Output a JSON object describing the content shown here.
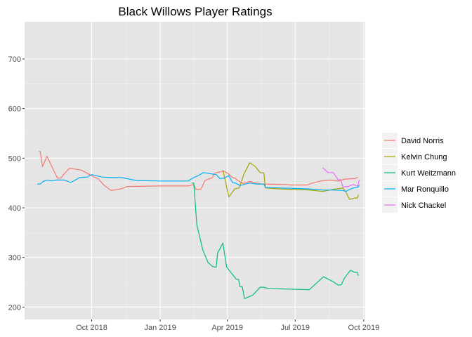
{
  "chart_data": {
    "type": "line",
    "title": "Black Willows Player Ratings",
    "xlabel": "",
    "ylabel": "",
    "x_axis": {
      "type": "date",
      "range": [
        "2018-07-03",
        "2019-10-03"
      ],
      "ticks": [
        {
          "date": "2018-10-01",
          "label": "Oct 2018"
        },
        {
          "date": "2019-01-01",
          "label": "Jan 2019"
        },
        {
          "date": "2019-04-01",
          "label": "Apr 2019"
        },
        {
          "date": "2019-07-01",
          "label": "Jul 2019"
        },
        {
          "date": "2019-10-01",
          "label": "Oct 2019"
        }
      ]
    },
    "y_axis": {
      "range": [
        175,
        775
      ],
      "ticks": [
        200,
        300,
        400,
        500,
        600,
        700
      ]
    },
    "grid": true,
    "legend_position": "right",
    "background": "#e5e5e5",
    "series": [
      {
        "name": "David Norris",
        "color": "#F8766D",
        "points": [
          [
            "2018-07-22",
            514
          ],
          [
            "2018-07-24",
            513
          ],
          [
            "2018-07-27",
            483
          ],
          [
            "2018-08-02",
            504
          ],
          [
            "2018-08-16",
            460
          ],
          [
            "2018-08-21",
            460
          ],
          [
            "2018-08-25",
            468
          ],
          [
            "2018-09-01",
            480
          ],
          [
            "2018-09-17",
            476
          ],
          [
            "2018-10-01",
            465
          ],
          [
            "2018-10-10",
            458
          ],
          [
            "2018-10-18",
            445
          ],
          [
            "2018-10-27",
            435
          ],
          [
            "2018-11-09",
            438
          ],
          [
            "2018-11-18",
            443
          ],
          [
            "2019-01-01",
            444
          ],
          [
            "2019-02-07",
            444
          ],
          [
            "2019-02-15",
            447
          ],
          [
            "2019-02-18",
            437
          ],
          [
            "2019-02-25",
            438
          ],
          [
            "2019-03-02",
            455
          ],
          [
            "2019-03-12",
            461
          ],
          [
            "2019-03-15",
            470
          ],
          [
            "2019-03-27",
            474
          ],
          [
            "2019-04-01",
            470
          ],
          [
            "2019-04-08",
            461
          ],
          [
            "2019-04-11",
            460
          ],
          [
            "2019-04-15",
            455
          ],
          [
            "2019-04-22",
            449
          ],
          [
            "2019-05-01",
            453
          ],
          [
            "2019-05-10",
            450
          ],
          [
            "2019-05-17",
            448
          ],
          [
            "2019-06-20",
            447
          ],
          [
            "2019-06-23",
            446
          ],
          [
            "2019-07-17",
            446
          ],
          [
            "2019-07-24",
            450
          ],
          [
            "2019-08-08",
            455
          ],
          [
            "2019-08-17",
            456
          ],
          [
            "2019-08-28",
            454
          ],
          [
            "2019-09-06",
            458
          ],
          [
            "2019-09-20",
            459
          ],
          [
            "2019-09-23",
            462
          ]
        ]
      },
      {
        "name": "Kelvin Chung",
        "color": "#A3A500",
        "points": [
          [
            "2019-03-26",
            476
          ],
          [
            "2019-04-03",
            422
          ],
          [
            "2019-04-11",
            438
          ],
          [
            "2019-04-17",
            440
          ],
          [
            "2019-04-23",
            467
          ],
          [
            "2019-05-01",
            491
          ],
          [
            "2019-05-08",
            484
          ],
          [
            "2019-05-15",
            471
          ],
          [
            "2019-05-20",
            470
          ],
          [
            "2019-05-22",
            440
          ],
          [
            "2019-06-10",
            438
          ],
          [
            "2019-07-01",
            437
          ],
          [
            "2019-07-20",
            436
          ],
          [
            "2019-08-07",
            433
          ],
          [
            "2019-08-20",
            437
          ],
          [
            "2019-09-03",
            440
          ],
          [
            "2019-09-07",
            432
          ],
          [
            "2019-09-12",
            417
          ],
          [
            "2019-09-20",
            420
          ],
          [
            "2019-09-22",
            419
          ],
          [
            "2019-09-24",
            426
          ]
        ]
      },
      {
        "name": "Kurt Weitzmann",
        "color": "#00BF7D",
        "points": [
          [
            "2019-02-12",
            450
          ],
          [
            "2019-02-15",
            450
          ],
          [
            "2019-02-19",
            366
          ],
          [
            "2019-02-27",
            316
          ],
          [
            "2019-03-06",
            290
          ],
          [
            "2019-03-12",
            282
          ],
          [
            "2019-03-17",
            280
          ],
          [
            "2019-03-19",
            309
          ],
          [
            "2019-03-26",
            329
          ],
          [
            "2019-03-31",
            281
          ],
          [
            "2019-04-13",
            256
          ],
          [
            "2019-04-16",
            256
          ],
          [
            "2019-04-18",
            241
          ],
          [
            "2019-04-21",
            241
          ],
          [
            "2019-04-24",
            217
          ],
          [
            "2019-05-05",
            224
          ],
          [
            "2019-05-15",
            240
          ],
          [
            "2019-05-20",
            240
          ],
          [
            "2019-05-24",
            238
          ],
          [
            "2019-06-06",
            237
          ],
          [
            "2019-06-24",
            236
          ],
          [
            "2019-07-20",
            235
          ],
          [
            "2019-08-08",
            261
          ],
          [
            "2019-08-21",
            251
          ],
          [
            "2019-08-28",
            244
          ],
          [
            "2019-09-01",
            245
          ],
          [
            "2019-09-05",
            258
          ],
          [
            "2019-09-13",
            274
          ],
          [
            "2019-09-19",
            270
          ],
          [
            "2019-09-22",
            270
          ],
          [
            "2019-09-24",
            263
          ]
        ]
      },
      {
        "name": "Mar Ronquillo",
        "color": "#00B0F6",
        "points": [
          [
            "2018-07-20",
            448
          ],
          [
            "2018-07-24",
            448
          ],
          [
            "2018-07-28",
            453
          ],
          [
            "2018-08-03",
            456
          ],
          [
            "2018-08-08",
            454
          ],
          [
            "2018-08-15",
            456
          ],
          [
            "2018-08-25",
            456
          ],
          [
            "2018-09-03",
            451
          ],
          [
            "2018-09-15",
            461
          ],
          [
            "2018-09-25",
            462
          ],
          [
            "2018-10-01",
            467
          ],
          [
            "2018-10-15",
            462
          ],
          [
            "2018-10-25",
            461
          ],
          [
            "2018-11-10",
            461
          ],
          [
            "2018-11-30",
            455
          ],
          [
            "2019-01-01",
            454
          ],
          [
            "2019-02-07",
            454
          ],
          [
            "2019-02-15",
            461
          ],
          [
            "2019-02-21",
            465
          ],
          [
            "2019-02-28",
            471
          ],
          [
            "2019-03-12",
            468
          ],
          [
            "2019-03-17",
            467
          ],
          [
            "2019-03-22",
            459
          ],
          [
            "2019-03-28",
            460
          ],
          [
            "2019-04-03",
            465
          ],
          [
            "2019-04-08",
            451
          ],
          [
            "2019-04-12",
            450
          ],
          [
            "2019-04-18",
            445
          ],
          [
            "2019-05-01",
            450
          ],
          [
            "2019-05-10",
            448
          ],
          [
            "2019-05-20",
            448
          ],
          [
            "2019-05-22",
            441
          ],
          [
            "2019-06-10",
            440
          ],
          [
            "2019-07-01",
            439
          ],
          [
            "2019-07-20",
            438
          ],
          [
            "2019-08-07",
            436
          ],
          [
            "2019-08-20",
            436
          ],
          [
            "2019-09-03",
            435
          ],
          [
            "2019-09-07",
            433
          ],
          [
            "2019-09-12",
            437
          ],
          [
            "2019-09-17",
            440
          ],
          [
            "2019-09-23",
            441
          ],
          [
            "2019-09-25",
            446
          ]
        ]
      },
      {
        "name": "Nick Chackel",
        "color": "#E76BF3",
        "points": [
          [
            "2019-08-07",
            481
          ],
          [
            "2019-08-14",
            471
          ],
          [
            "2019-08-21",
            471
          ],
          [
            "2019-08-28",
            456
          ],
          [
            "2019-08-31",
            457
          ],
          [
            "2019-09-03",
            442
          ],
          [
            "2019-09-10",
            443
          ],
          [
            "2019-09-17",
            447
          ],
          [
            "2019-09-23",
            444
          ],
          [
            "2019-09-25",
            456
          ]
        ]
      }
    ]
  }
}
